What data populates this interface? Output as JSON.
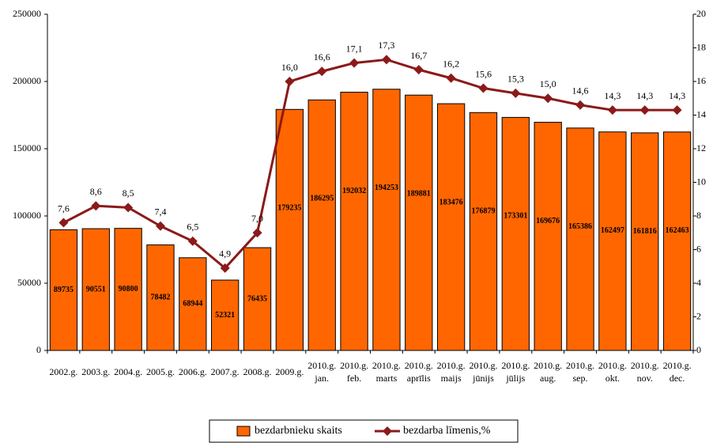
{
  "chart_data": {
    "type": "bar",
    "categories": [
      "2002.g.",
      "2003.g.",
      "2004.g.",
      "2005.g.",
      "2006.g.",
      "2007.g.",
      "2008.g.",
      "2009.g.",
      "2010.g. jan.",
      "2010.g. feb.",
      "2010.g. marts",
      "2010.g. aprīlis",
      "2010.g. maijs",
      "2010.g. jūnijs",
      "2010.g. jūlijs",
      "2010.g. aug.",
      "2010.g. sep.",
      "2010.g. okt.",
      "2010.g. nov.",
      "2010.g. dec."
    ],
    "series": [
      {
        "name": "bezdarbnieku skaits",
        "color": "#ff6600",
        "values": [
          89735,
          90551,
          90800,
          78482,
          68944,
          52321,
          76435,
          179235,
          186295,
          192032,
          194253,
          189881,
          183476,
          176879,
          173301,
          169676,
          165386,
          162497,
          161816,
          162463
        ]
      },
      {
        "name": "bezdarba līmenis,%",
        "color": "#8b1a1a",
        "axis": "y2",
        "values": [
          7.6,
          8.6,
          8.5,
          7.4,
          6.5,
          4.9,
          7.0,
          16.0,
          16.6,
          17.1,
          17.3,
          16.7,
          16.2,
          15.6,
          15.3,
          15.0,
          14.6,
          14.3,
          14.3,
          14.3
        ],
        "value_labels": [
          "7,6",
          "8,6",
          "8,5",
          "7,4",
          "6,5",
          "4,9",
          "7,0",
          "16,0",
          "16,6",
          "17,1",
          "17,3",
          "16,7",
          "16,2",
          "15,6",
          "15,3",
          "15,0",
          "14,6",
          "14,3",
          "14,3",
          "14,3"
        ]
      }
    ],
    "ylim": [
      0,
      250000
    ],
    "yticks": [
      0,
      50000,
      100000,
      150000,
      200000,
      250000
    ],
    "y2lim": [
      0,
      20
    ],
    "y2ticks": [
      0,
      2,
      4,
      6,
      8,
      10,
      12,
      14,
      16,
      18,
      20
    ],
    "legend": "bottom"
  }
}
